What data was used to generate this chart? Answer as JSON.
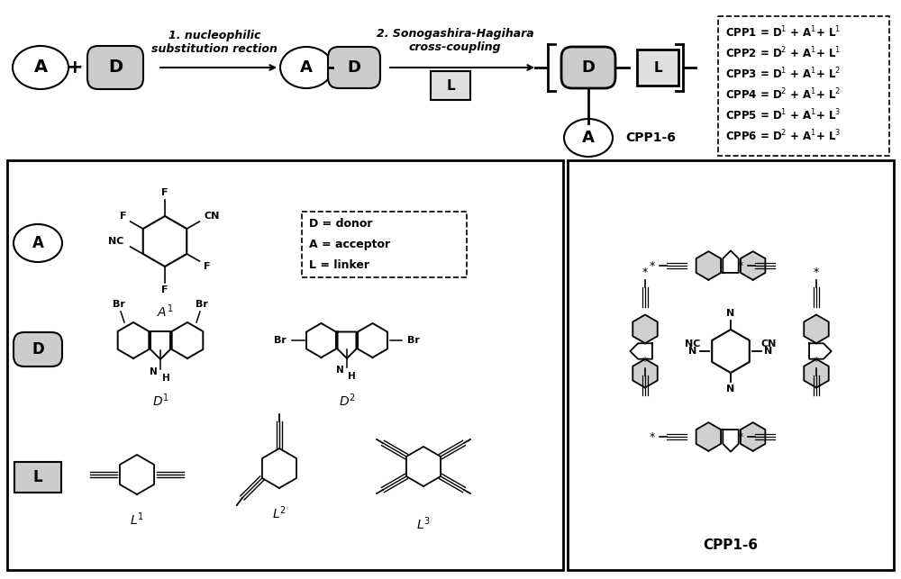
{
  "bg_color": "#ffffff",
  "light_gray": "#cccccc",
  "lighter_gray": "#e0e0e0",
  "step1_label": "1. nucleophilic\nsubstitution rection",
  "step2_label": "2. Sonogashira-Hagihara\ncross-coupling",
  "cpp_list": [
    "CPP1 = D$^1$ + A$^1$+ L$^1$",
    "CPP2 = D$^2$ + A$^1$+ L$^1$",
    "CPP3 = D$^1$ + A$^1$+ L$^2$",
    "CPP4 = D$^2$ + A$^1$+ L$^2$",
    "CPP5 = D$^1$ + A$^1$+ L$^3$",
    "CPP6 = D$^2$ + A$^1$+ L$^3$"
  ],
  "CPP_label": "CPP1-6"
}
